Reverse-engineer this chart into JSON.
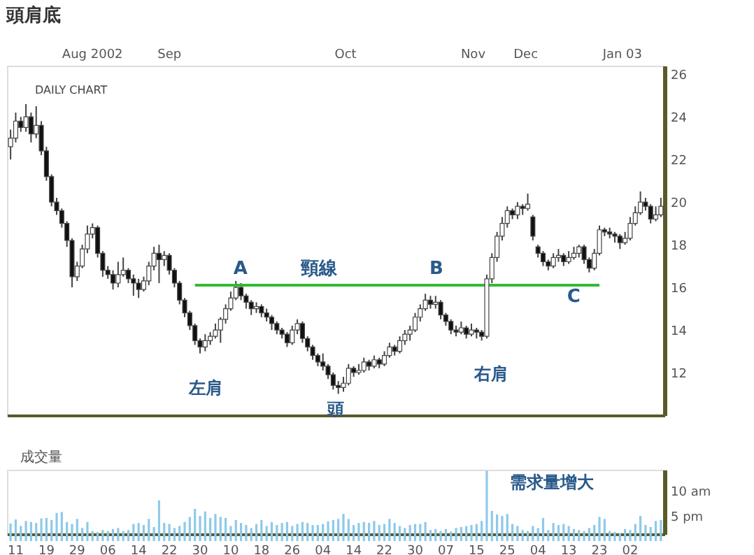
{
  "chart_data": [
    {
      "type": "candlestick",
      "title": "頭肩底",
      "subtitle": "DAILY CHART",
      "categories": [
        null,
        null,
        null,
        null,
        null,
        null,
        null,
        null,
        null,
        null,
        null,
        null,
        null,
        null,
        null,
        null,
        null,
        null,
        null,
        null,
        null,
        null,
        null,
        null,
        null,
        null,
        null,
        null,
        null,
        null,
        null,
        null,
        null,
        null,
        null,
        null,
        null,
        null,
        null,
        null,
        null,
        null,
        null,
        null,
        null,
        null,
        null,
        null,
        null,
        null,
        null,
        null,
        null,
        null,
        null,
        null,
        null,
        null,
        null,
        null,
        null,
        null,
        null,
        null,
        null,
        null,
        null,
        null,
        null,
        null,
        null,
        null,
        null,
        null,
        null,
        null,
        null,
        null,
        null,
        null,
        null,
        null,
        null,
        null,
        null,
        null,
        null,
        null,
        null,
        null,
        null,
        null,
        null,
        null,
        null,
        null,
        null,
        null,
        null,
        null,
        null,
        null,
        null,
        null,
        null,
        null,
        null,
        null,
        null,
        null,
        null,
        null,
        null,
        null,
        null,
        null,
        null,
        null,
        null,
        null,
        null,
        null,
        null,
        null,
        null,
        null,
        null,
        null
      ],
      "ohlc": [
        [
          22.6,
          23.4,
          22.0,
          23.0
        ],
        [
          23.0,
          24.2,
          22.8,
          23.8
        ],
        [
          23.8,
          24.0,
          23.3,
          23.5
        ],
        [
          23.5,
          24.6,
          23.3,
          24.0
        ],
        [
          24.0,
          24.2,
          22.8,
          23.2
        ],
        [
          23.2,
          24.5,
          23.0,
          23.6
        ],
        [
          23.6,
          23.8,
          22.2,
          22.4
        ],
        [
          22.4,
          22.6,
          21.0,
          21.2
        ],
        [
          21.2,
          21.3,
          19.8,
          20.0
        ],
        [
          20.0,
          20.2,
          19.4,
          19.6
        ],
        [
          19.6,
          19.7,
          18.8,
          19.0
        ],
        [
          19.0,
          19.1,
          17.9,
          18.2
        ],
        [
          18.2,
          18.3,
          16.0,
          16.5
        ],
        [
          16.5,
          17.2,
          16.3,
          17.0
        ],
        [
          17.0,
          18.0,
          16.9,
          17.8
        ],
        [
          17.8,
          18.9,
          17.6,
          18.5
        ],
        [
          18.5,
          19.0,
          18.3,
          18.8
        ],
        [
          18.8,
          18.9,
          17.4,
          17.6
        ],
        [
          17.6,
          17.7,
          16.5,
          16.8
        ],
        [
          16.8,
          17.0,
          16.4,
          16.6
        ],
        [
          16.6,
          16.8,
          15.9,
          16.2
        ],
        [
          16.2,
          17.2,
          16.0,
          16.6
        ],
        [
          16.6,
          17.4,
          16.5,
          16.8
        ],
        [
          16.8,
          16.9,
          16.2,
          16.4
        ],
        [
          16.4,
          16.6,
          15.6,
          16.2
        ],
        [
          16.2,
          16.4,
          15.5,
          15.9
        ],
        [
          15.9,
          16.5,
          15.8,
          16.3
        ],
        [
          16.3,
          17.2,
          16.1,
          17.0
        ],
        [
          17.0,
          17.9,
          16.8,
          17.6
        ],
        [
          17.6,
          18.0,
          16.2,
          17.3
        ],
        [
          17.3,
          17.7,
          17.0,
          17.5
        ],
        [
          17.5,
          17.6,
          16.6,
          16.8
        ],
        [
          16.8,
          16.9,
          16.0,
          16.2
        ],
        [
          16.2,
          16.3,
          15.2,
          15.4
        ],
        [
          15.4,
          15.5,
          14.6,
          14.8
        ],
        [
          14.8,
          14.9,
          14.0,
          14.2
        ],
        [
          14.2,
          14.3,
          13.3,
          13.5
        ],
        [
          13.5,
          13.6,
          12.9,
          13.2
        ],
        [
          13.2,
          13.8,
          13.0,
          13.5
        ],
        [
          13.5,
          13.9,
          13.3,
          13.7
        ],
        [
          13.7,
          14.3,
          13.6,
          14.0
        ],
        [
          14.0,
          14.6,
          13.4,
          14.5
        ],
        [
          14.5,
          15.2,
          14.3,
          15.0
        ],
        [
          15.0,
          15.8,
          14.9,
          15.5
        ],
        [
          15.5,
          16.3,
          15.4,
          16.0
        ],
        [
          16.0,
          16.2,
          15.4,
          15.6
        ],
        [
          15.6,
          15.7,
          15.0,
          15.3
        ],
        [
          15.3,
          15.4,
          14.7,
          15.0
        ],
        [
          15.0,
          15.3,
          14.8,
          15.1
        ],
        [
          15.1,
          15.2,
          14.6,
          14.8
        ],
        [
          14.8,
          15.0,
          14.4,
          14.6
        ],
        [
          14.6,
          14.7,
          14.0,
          14.3
        ],
        [
          14.3,
          14.4,
          13.8,
          14.0
        ],
        [
          14.0,
          14.1,
          13.6,
          13.8
        ],
        [
          13.8,
          13.9,
          13.2,
          13.4
        ],
        [
          13.4,
          14.2,
          13.3,
          14.0
        ],
        [
          14.0,
          14.5,
          13.8,
          14.3
        ],
        [
          14.3,
          14.4,
          13.4,
          13.6
        ],
        [
          13.6,
          13.7,
          13.0,
          13.2
        ],
        [
          13.2,
          13.3,
          12.6,
          12.8
        ],
        [
          12.8,
          12.9,
          12.3,
          12.5
        ],
        [
          12.5,
          12.9,
          12.1,
          12.3
        ],
        [
          12.3,
          12.4,
          11.7,
          11.9
        ],
        [
          11.9,
          12.0,
          11.2,
          11.4
        ],
        [
          11.4,
          11.6,
          11.0,
          11.3
        ],
        [
          11.3,
          11.8,
          11.1,
          11.5
        ],
        [
          11.5,
          12.4,
          11.4,
          12.2
        ],
        [
          12.2,
          12.3,
          11.8,
          12.0
        ],
        [
          12.0,
          12.4,
          11.9,
          12.1
        ],
        [
          12.1,
          12.7,
          12.0,
          12.5
        ],
        [
          12.5,
          12.6,
          12.1,
          12.3
        ],
        [
          12.3,
          12.8,
          12.2,
          12.6
        ],
        [
          12.6,
          12.7,
          12.2,
          12.4
        ],
        [
          12.4,
          13.0,
          12.3,
          12.8
        ],
        [
          12.8,
          13.4,
          12.7,
          13.2
        ],
        [
          13.2,
          13.3,
          12.8,
          13.0
        ],
        [
          13.0,
          13.7,
          12.9,
          13.5
        ],
        [
          13.5,
          14.0,
          13.3,
          13.8
        ],
        [
          13.8,
          14.2,
          13.5,
          14.0
        ],
        [
          14.0,
          14.8,
          13.9,
          14.6
        ],
        [
          14.6,
          15.2,
          14.4,
          15.0
        ],
        [
          15.0,
          15.7,
          14.9,
          15.4
        ],
        [
          15.4,
          15.6,
          15.0,
          15.2
        ],
        [
          15.2,
          15.6,
          15.0,
          15.3
        ],
        [
          15.3,
          15.4,
          14.5,
          14.7
        ],
        [
          14.7,
          14.8,
          14.2,
          14.4
        ],
        [
          14.4,
          14.5,
          13.8,
          14.0
        ],
        [
          14.0,
          14.2,
          13.7,
          13.9
        ],
        [
          13.9,
          14.4,
          13.8,
          14.1
        ],
        [
          14.1,
          14.2,
          13.6,
          13.8
        ],
        [
          13.8,
          14.3,
          13.7,
          14.0
        ],
        [
          14.0,
          14.1,
          13.6,
          13.9
        ],
        [
          13.9,
          14.0,
          13.5,
          13.7
        ],
        [
          13.7,
          16.6,
          13.6,
          16.4
        ],
        [
          16.4,
          17.6,
          16.2,
          17.4
        ],
        [
          17.4,
          18.6,
          17.2,
          18.4
        ],
        [
          18.4,
          19.3,
          18.2,
          19.0
        ],
        [
          19.0,
          19.8,
          18.8,
          19.6
        ],
        [
          19.6,
          19.7,
          19.2,
          19.4
        ],
        [
          19.4,
          20.0,
          19.2,
          19.8
        ],
        [
          19.8,
          19.9,
          19.4,
          19.7
        ],
        [
          19.7,
          20.4,
          19.6,
          19.9
        ],
        [
          19.3,
          19.4,
          18.2,
          18.4
        ],
        [
          17.9,
          18.0,
          17.4,
          17.6
        ],
        [
          17.6,
          17.7,
          17.0,
          17.2
        ],
        [
          17.2,
          17.3,
          16.8,
          17.0
        ],
        [
          17.0,
          17.6,
          16.9,
          17.4
        ],
        [
          17.4,
          17.8,
          17.2,
          17.5
        ],
        [
          17.5,
          17.6,
          17.0,
          17.2
        ],
        [
          17.2,
          17.7,
          17.1,
          17.4
        ],
        [
          17.4,
          17.9,
          17.3,
          17.6
        ],
        [
          17.6,
          18.0,
          17.4,
          17.9
        ],
        [
          17.9,
          18.0,
          17.1,
          17.3
        ],
        [
          17.3,
          17.4,
          16.7,
          16.9
        ],
        [
          16.9,
          17.8,
          16.8,
          17.6
        ],
        [
          17.6,
          18.9,
          17.5,
          18.7
        ],
        [
          18.7,
          18.8,
          18.4,
          18.6
        ],
        [
          18.6,
          18.8,
          18.3,
          18.5
        ],
        [
          18.5,
          18.6,
          18.1,
          18.4
        ],
        [
          18.4,
          18.5,
          17.8,
          18.1
        ],
        [
          18.1,
          18.6,
          18.0,
          18.3
        ],
        [
          18.3,
          19.3,
          18.2,
          19.0
        ],
        [
          19.0,
          19.8,
          18.9,
          19.5
        ],
        [
          19.5,
          20.5,
          19.4,
          20.0
        ],
        [
          20.0,
          20.2,
          19.6,
          19.8
        ],
        [
          19.8,
          19.9,
          19.0,
          19.2
        ],
        [
          19.2,
          19.8,
          19.1,
          19.4
        ],
        [
          19.4,
          20.2,
          19.3,
          19.8
        ]
      ],
      "series": [
        {
          "type": "line",
          "color": "#33bb33",
          "line_style": "solid",
          "values": [
            null,
            null,
            null,
            null,
            null,
            null,
            null,
            null,
            null,
            null,
            null,
            null,
            null,
            null,
            null,
            null,
            null,
            null,
            null,
            null,
            null,
            null,
            null,
            null,
            null,
            null,
            null,
            null,
            null,
            null,
            null,
            null,
            null,
            null,
            null,
            null,
            16.1,
            16.1,
            16.1,
            16.1,
            16.1,
            16.1,
            16.1,
            16.1,
            16.1,
            16.1,
            16.1,
            16.1,
            16.1,
            16.1,
            16.1,
            16.1,
            16.1,
            16.1,
            16.1,
            16.1,
            16.1,
            16.1,
            16.1,
            16.1,
            16.1,
            16.1,
            16.1,
            16.1,
            16.1,
            16.1,
            16.1,
            16.1,
            16.1,
            16.1,
            16.1,
            16.1,
            16.1,
            16.1,
            16.1,
            16.1,
            16.1,
            16.1,
            16.1,
            16.1,
            16.1,
            16.1,
            16.1,
            16.1,
            16.1,
            16.1,
            16.1,
            16.1,
            16.1,
            16.1,
            16.1,
            16.1,
            16.1,
            16.1,
            16.1,
            16.1,
            16.1,
            16.1,
            16.1,
            16.1,
            16.1,
            16.1,
            16.1,
            16.1,
            16.1,
            16.1,
            16.1,
            16.1,
            16.1,
            16.1,
            16.1,
            16.1,
            16.1,
            16.1,
            16.1,
            16.1,
            null,
            null,
            null,
            null,
            null,
            null,
            null,
            null,
            null,
            null,
            null,
            null
          ]
        }
      ],
      "ylim": [
        10,
        26.4
      ],
      "yticks": [
        12,
        14,
        16,
        18,
        20,
        22,
        24,
        26
      ],
      "tick_labels": "y",
      "annotations": [
        "Aug 2002",
        "Sep",
        "Oct",
        "Nov",
        "Dec",
        "Jan 03",
        "A",
        "頸線",
        "B",
        "C",
        "左肩",
        "頭",
        "右肩"
      ],
      "grid": false,
      "legend": false
    },
    {
      "type": "bar",
      "color": "#8ec9ea",
      "categories": [
        null,
        "11",
        null,
        null,
        null,
        null,
        null,
        "19",
        null,
        null,
        null,
        null,
        null,
        "29",
        null,
        null,
        null,
        null,
        null,
        "06",
        null,
        null,
        null,
        null,
        null,
        "14",
        null,
        null,
        null,
        null,
        null,
        "22",
        null,
        null,
        null,
        null,
        null,
        "30",
        null,
        null,
        null,
        null,
        null,
        "10",
        null,
        null,
        null,
        null,
        null,
        "18",
        null,
        null,
        null,
        null,
        null,
        "26",
        null,
        null,
        null,
        null,
        null,
        "04",
        null,
        null,
        null,
        null,
        null,
        "14",
        null,
        null,
        null,
        null,
        null,
        "22",
        null,
        null,
        null,
        null,
        null,
        "30",
        null,
        null,
        null,
        null,
        null,
        "07",
        null,
        null,
        null,
        null,
        null,
        "15",
        null,
        null,
        null,
        null,
        null,
        "25",
        null,
        null,
        null,
        null,
        null,
        "04",
        null,
        null,
        null,
        null,
        null,
        "13",
        null,
        null,
        null,
        null,
        null,
        "23",
        null,
        null,
        null,
        null,
        null,
        "02",
        null,
        null,
        null,
        null,
        null,
        null
      ],
      "values": [
        3.5,
        4.3,
        3.0,
        4.0,
        3.8,
        3.6,
        4.5,
        4.6,
        4.2,
        5.6,
        5.8,
        3.8,
        3.4,
        4.4,
        2.6,
        3.8,
        2.0,
        1.8,
        2.2,
        2.0,
        2.4,
        2.6,
        2.0,
        2.2,
        3.4,
        3.6,
        3.2,
        4.4,
        2.8,
        8.1,
        3.6,
        3.4,
        2.6,
        3.0,
        3.8,
        4.8,
        6.4,
        5.0,
        5.9,
        4.6,
        5.4,
        4.8,
        4.6,
        3.0,
        4.2,
        3.6,
        3.2,
        2.6,
        3.4,
        4.2,
        3.0,
        3.8,
        3.2,
        3.6,
        3.8,
        3.0,
        3.4,
        3.8,
        3.6,
        3.2,
        3.2,
        3.4,
        3.9,
        4.2,
        4.4,
        5.4,
        4.4,
        3.2,
        3.6,
        3.8,
        3.6,
        4.0,
        3.2,
        3.4,
        4.4,
        3.6,
        3.0,
        2.6,
        3.2,
        3.4,
        3.4,
        3.8,
        2.2,
        2.4,
        2.0,
        2.4,
        1.9,
        2.6,
        2.8,
        3.0,
        3.2,
        3.4,
        4.0,
        14.0,
        6.0,
        5.3,
        5.0,
        5.4,
        3.4,
        3.0,
        2.2,
        2.0,
        3.0,
        2.6,
        4.6,
        2.2,
        3.6,
        3.2,
        3.4,
        3.0,
        2.4,
        2.2,
        2.0,
        2.6,
        3.2,
        4.8,
        4.4,
        2.0,
        1.8,
        1.6,
        2.4,
        2.2,
        3.4,
        5.0,
        3.2,
        2.8,
        4.0,
        4.2
      ],
      "ylim": [
        1.4,
        14.2
      ],
      "yticks": [
        {
          "value": 5,
          "label": "5 pm"
        },
        {
          "value": 10,
          "label": "10 am"
        }
      ],
      "annotations": [
        "成交量",
        "需求量增大"
      ],
      "grid": false,
      "legend": false
    }
  ]
}
